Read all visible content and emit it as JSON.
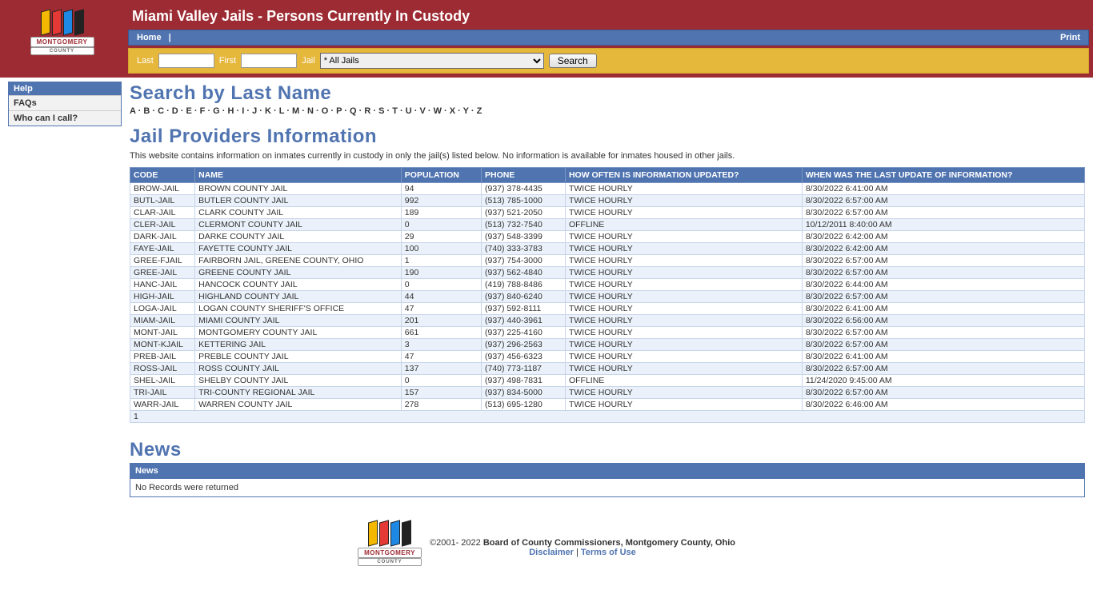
{
  "header": {
    "title": "Miami Valley Jails - Persons Currently In Custody",
    "logo_main": "MONTGOMERY",
    "logo_sub": "COUNTY"
  },
  "nav": {
    "home": "Home",
    "print": "Print"
  },
  "search": {
    "last_label": "Last",
    "first_label": "First",
    "jail_label": "Jail",
    "jail_selected": "* All Jails",
    "button": "Search"
  },
  "sidebar": {
    "head": "Help",
    "items": [
      "FAQs",
      "Who can I call?"
    ]
  },
  "alpha_title": "Search by Last Name",
  "alpha_letters": [
    "A",
    "B",
    "C",
    "D",
    "E",
    "F",
    "G",
    "H",
    "I",
    "J",
    "K",
    "L",
    "M",
    "N",
    "O",
    "P",
    "Q",
    "R",
    "S",
    "T",
    "U",
    "V",
    "W",
    "X",
    "Y",
    "Z"
  ],
  "providers": {
    "title": "Jail Providers Information",
    "desc": "This website contains information on inmates currently in custody in only the jail(s) listed below. No information is available for inmates housed in other jails.",
    "columns": [
      "CODE",
      "NAME",
      "POPULATION",
      "PHONE",
      "HOW OFTEN IS INFORMATION UPDATED?",
      "WHEN WAS THE LAST UPDATE OF INFORMATION?"
    ],
    "rows": [
      [
        "BROW-JAIL",
        "BROWN COUNTY JAIL",
        "94",
        "(937) 378-4435",
        "TWICE HOURLY",
        "8/30/2022 6:41:00 AM"
      ],
      [
        "BUTL-JAIL",
        "BUTLER COUNTY JAIL",
        "992",
        "(513) 785-1000",
        "TWICE HOURLY",
        "8/30/2022 6:57:00 AM"
      ],
      [
        "CLAR-JAIL",
        "CLARK COUNTY JAIL",
        "189",
        "(937) 521-2050",
        "TWICE HOURLY",
        "8/30/2022 6:57:00 AM"
      ],
      [
        "CLER-JAIL",
        "CLERMONT COUNTY JAIL",
        "0",
        "(513) 732-7540",
        "OFFLINE",
        "10/12/2011 8:40:00 AM"
      ],
      [
        "DARK-JAIL",
        "DARKE COUNTY JAIL",
        "29",
        "(937) 548-3399",
        "TWICE HOURLY",
        "8/30/2022 6:42:00 AM"
      ],
      [
        "FAYE-JAIL",
        "FAYETTE COUNTY JAIL",
        "100",
        "(740) 333-3783",
        "TWICE HOURLY",
        "8/30/2022 6:42:00 AM"
      ],
      [
        "GREE-FJAIL",
        "FAIRBORN JAIL, GREENE COUNTY, OHIO",
        "1",
        "(937) 754-3000",
        "TWICE HOURLY",
        "8/30/2022 6:57:00 AM"
      ],
      [
        "GREE-JAIL",
        "GREENE COUNTY JAIL",
        "190",
        "(937) 562-4840",
        "TWICE HOURLY",
        "8/30/2022 6:57:00 AM"
      ],
      [
        "HANC-JAIL",
        "HANCOCK COUNTY JAIL",
        "0",
        "(419) 788-8486",
        "TWICE HOURLY",
        "8/30/2022 6:44:00 AM"
      ],
      [
        "HIGH-JAIL",
        "HIGHLAND COUNTY JAIL",
        "44",
        "(937) 840-6240",
        "TWICE HOURLY",
        "8/30/2022 6:57:00 AM"
      ],
      [
        "LOGA-JAIL",
        "LOGAN COUNTY SHERIFF'S OFFICE",
        "47",
        "(937) 592-8111",
        "TWICE HOURLY",
        "8/30/2022 6:41:00 AM"
      ],
      [
        "MIAM-JAIL",
        "MIAMI COUNTY JAIL",
        "201",
        "(937) 440-3961",
        "TWICE HOURLY",
        "8/30/2022 6:56:00 AM"
      ],
      [
        "MONT-JAIL",
        "MONTGOMERY COUNTY JAIL",
        "661",
        "(937) 225-4160",
        "TWICE HOURLY",
        "8/30/2022 6:57:00 AM"
      ],
      [
        "MONT-KJAIL",
        "KETTERING JAIL",
        "3",
        "(937) 296-2563",
        "TWICE HOURLY",
        "8/30/2022 6:57:00 AM"
      ],
      [
        "PREB-JAIL",
        "PREBLE COUNTY JAIL",
        "47",
        "(937) 456-6323",
        "TWICE HOURLY",
        "8/30/2022 6:41:00 AM"
      ],
      [
        "ROSS-JAIL",
        "ROSS COUNTY JAIL",
        "137",
        "(740) 773-1187",
        "TWICE HOURLY",
        "8/30/2022 6:57:00 AM"
      ],
      [
        "SHEL-JAIL",
        "SHELBY COUNTY JAIL",
        "0",
        "(937) 498-7831",
        "OFFLINE",
        "11/24/2020 9:45:00 AM"
      ],
      [
        "TRI-JAIL",
        "TRI-COUNTY REGIONAL JAIL",
        "157",
        "(937) 834-5000",
        "TWICE HOURLY",
        "8/30/2022 6:57:00 AM"
      ],
      [
        "WARR-JAIL",
        "WARREN COUNTY JAIL",
        "278",
        "(513) 695-1280",
        "TWICE HOURLY",
        "8/30/2022 6:46:00 AM"
      ]
    ],
    "pager": "1",
    "col_widths": [
      "6.8%",
      "21.6%",
      "8.4%",
      "8.8%",
      "24.8%",
      "29.6%"
    ]
  },
  "news": {
    "title": "News",
    "head": "News",
    "empty": "No Records were returned"
  },
  "footer": {
    "copyright_prefix": "©2001- 2022 ",
    "copyright_bold": "Board of County Commissioners, Montgomery County, Ohio",
    "disclaimer": "Disclaimer",
    "terms": "Terms of Use",
    "sep": " | "
  },
  "colors": {
    "header_bg": "#9d2b33",
    "nav_bg": "#5074b0",
    "search_bg": "#e5b73b"
  }
}
